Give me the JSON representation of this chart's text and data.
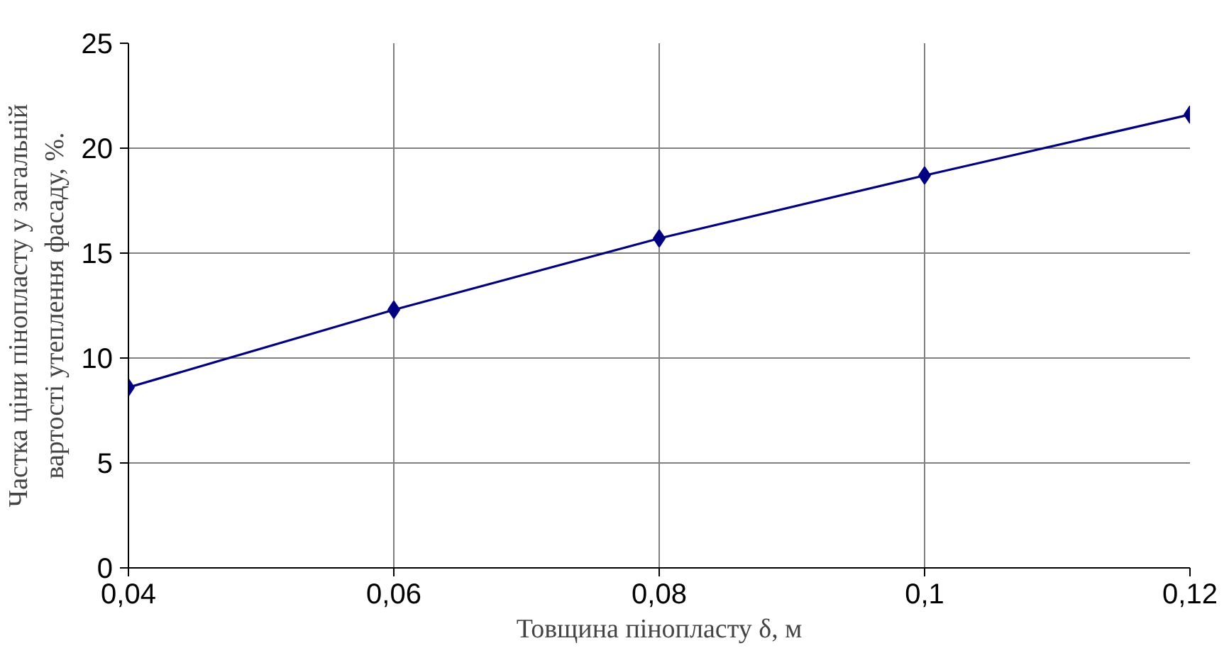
{
  "chart_data": {
    "type": "line",
    "xlabel": "Товщина пінопласту δ, м",
    "ylabel": "Частка ціни пінопласту у загальній\nвартості утеплення фасаду, %.",
    "x": [
      0.04,
      0.06,
      0.08,
      0.1,
      0.12
    ],
    "series": [
      {
        "color": "#000080",
        "values": [
          8.6,
          12.3,
          15.7,
          18.7,
          21.6
        ]
      }
    ],
    "xlim": [
      0.04,
      0.12
    ],
    "xticks": [
      {
        "value": 0.04,
        "label": "0,04"
      },
      {
        "value": 0.06,
        "label": "0,06"
      },
      {
        "value": 0.08,
        "label": "0,08"
      },
      {
        "value": 0.1,
        "label": "0,1"
      },
      {
        "value": 0.12,
        "label": "0,12"
      }
    ],
    "ylim": [
      0,
      25
    ],
    "yticks": [
      0,
      5,
      10,
      15,
      20,
      25
    ],
    "grid": true,
    "marker": "diamond",
    "line_style": "solid"
  }
}
